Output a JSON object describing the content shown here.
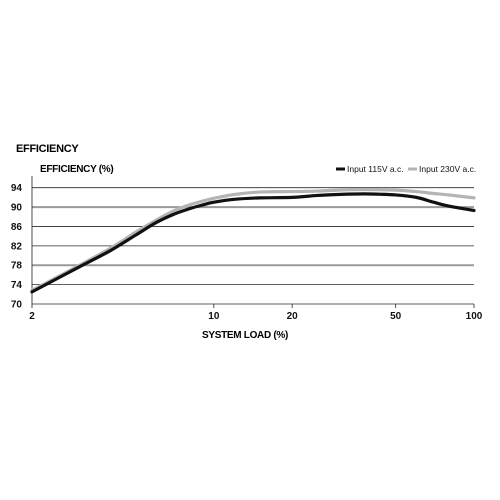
{
  "chart_data": {
    "type": "line",
    "title": "EFFICIENCY",
    "ylabel": "EFFICIENCY (%)",
    "xlabel": "SYSTEM LOAD (%)",
    "xscale": "log",
    "xlim": [
      2,
      100
    ],
    "ylim": [
      70,
      96
    ],
    "xticks": [
      2,
      10,
      20,
      50,
      100
    ],
    "yticks": [
      70,
      74,
      78,
      82,
      86,
      90,
      94
    ],
    "grid": "horizontal",
    "legend_position": "top-right",
    "series": [
      {
        "name": "Input 115V a.c.",
        "color": "#111111",
        "x": [
          2,
          3,
          4,
          5,
          6,
          7,
          8,
          9,
          10,
          12,
          15,
          20,
          25,
          30,
          35,
          40,
          50,
          60,
          70,
          80,
          100
        ],
        "y": [
          72.5,
          77.5,
          81.0,
          84.2,
          86.8,
          88.5,
          89.6,
          90.4,
          91.0,
          91.6,
          91.9,
          92.0,
          92.4,
          92.6,
          92.7,
          92.7,
          92.5,
          92.0,
          91.0,
          90.2,
          89.3
        ]
      },
      {
        "name": "Input 230V a.c.",
        "color": "#b4b4b4",
        "x": [
          2,
          3,
          4,
          5,
          6,
          7,
          8,
          9,
          10,
          12,
          15,
          20,
          25,
          30,
          35,
          40,
          50,
          60,
          70,
          80,
          100
        ],
        "y": [
          72.8,
          77.8,
          81.5,
          84.8,
          87.3,
          89.2,
          90.4,
          91.2,
          91.8,
          92.6,
          93.1,
          93.2,
          93.3,
          93.5,
          93.6,
          93.6,
          93.5,
          93.2,
          92.8,
          92.5,
          91.9
        ]
      }
    ]
  }
}
